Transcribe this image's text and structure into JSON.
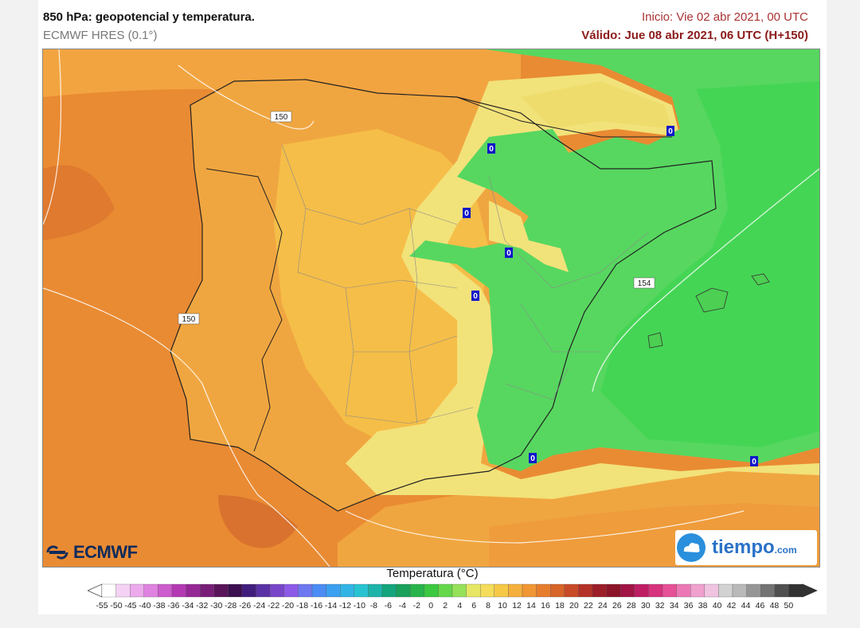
{
  "header": {
    "title": "850 hPa: geopotencial y temperatura.",
    "model": "ECMWF HRES (0.1°)",
    "init": "Inicio: Vie 02 abr 2021, 00 UTC",
    "valid": "Válido: Jue 08 abr 2021, 06 UTC (H+150)"
  },
  "map": {
    "contour_labels": [
      "150",
      "150",
      "154"
    ],
    "zero_labels": [
      "0",
      "0",
      "0",
      "0",
      "0",
      "0",
      "0",
      "0"
    ],
    "colors": {
      "sea_orange": "#e98b33",
      "land_orange": "#f0a640",
      "light_orange": "#f5be48",
      "yellow": "#f2e27a",
      "green": "#57d760",
      "bright_green": "#45d555",
      "dark_orange": "#d9722e"
    }
  },
  "logos": {
    "ecmwf": "ECMWF",
    "tiempo": "tiempo",
    "tiempo_suffix": ".com"
  },
  "legend": {
    "title": "Temperatura (°C)",
    "ticks": [
      "-55",
      "-50",
      "-45",
      "-40",
      "-38",
      "-36",
      "-34",
      "-32",
      "-30",
      "-28",
      "-26",
      "-24",
      "-22",
      "-20",
      "-18",
      "-16",
      "-14",
      "-12",
      "-10",
      "-8",
      "-6",
      "-4",
      "-2",
      "0",
      "2",
      "4",
      "6",
      "8",
      "10",
      "12",
      "14",
      "16",
      "18",
      "20",
      "22",
      "24",
      "26",
      "28",
      "30",
      "32",
      "34",
      "36",
      "38",
      "40",
      "42",
      "44",
      "46",
      "48",
      "50"
    ],
    "colors": [
      "#ffffff",
      "#f5d2f5",
      "#ecaaec",
      "#e082e0",
      "#cd5ccd",
      "#b43ab4",
      "#962896",
      "#781e78",
      "#5a145a",
      "#3c0f50",
      "#411e7d",
      "#5a32a5",
      "#7846c8",
      "#8c5ae6",
      "#6e78f0",
      "#4b8cf5",
      "#3ca0f0",
      "#32b4e6",
      "#28c3d2",
      "#1eb4aa",
      "#14a57d",
      "#19a05a",
      "#28b44b",
      "#3cc841",
      "#64d74b",
      "#96e15a",
      "#e6e664",
      "#f5dc5a",
      "#f5c846",
      "#f5af3c",
      "#f09632",
      "#e67d2d",
      "#d76428",
      "#c84b28",
      "#b43228",
      "#9b1e28",
      "#8c1428",
      "#a01446",
      "#be1e64",
      "#d7327d",
      "#e65096",
      "#eb78b4",
      "#f0a0cd",
      "#f0c3e1",
      "#d2d2d2",
      "#b9b9b9",
      "#969696",
      "#737373",
      "#505050",
      "#323232"
    ]
  }
}
